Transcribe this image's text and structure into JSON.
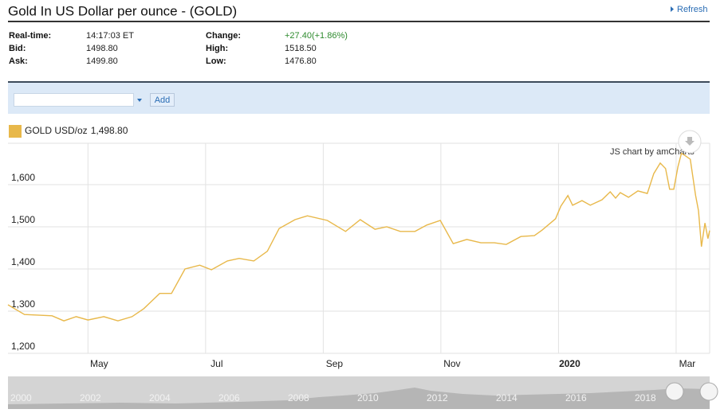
{
  "header": {
    "title": "Gold In US Dollar per ounce - (GOLD)",
    "refresh": "Refresh"
  },
  "quote": {
    "rows": [
      [
        {
          "label": "Real-time:",
          "value": "14:17:03 ET"
        },
        {
          "label": "Change:",
          "value": "+27.40(+1.86%)"
        }
      ],
      [
        {
          "label": "Bid:",
          "value": "1498.80"
        },
        {
          "label": "High:",
          "value": "1518.50"
        }
      ],
      [
        {
          "label": "Ask:",
          "value": "1499.80"
        },
        {
          "label": "Low:",
          "value": "1476.80"
        }
      ]
    ]
  },
  "toolbar": {
    "add": "Add"
  },
  "chart_data": {
    "type": "line",
    "credit": "JS chart by amCharts",
    "legend_value": "1,498.80",
    "x": [
      -0.36,
      -0.08,
      0.39,
      0.59,
      0.8,
      1.0,
      1.27,
      1.51,
      1.75,
      1.95,
      2.22,
      2.42,
      2.65,
      2.9,
      3.1,
      3.37,
      3.57,
      3.82,
      4.05,
      4.25,
      4.52,
      4.73,
      5.07,
      5.38,
      5.63,
      5.88,
      6.08,
      6.31,
      6.56,
      6.76,
      6.99,
      7.21,
      7.44,
      7.68,
      7.91,
      8.11,
      8.36,
      8.59,
      8.72,
      8.95,
      9.04,
      9.16,
      9.24,
      9.4,
      9.54,
      9.74,
      9.88,
      9.97,
      10.05,
      10.19,
      10.35,
      10.51,
      10.62,
      10.73,
      10.82,
      10.89,
      10.96,
      11.03,
      11.09,
      11.16,
      11.24,
      11.33,
      11.38,
      11.43,
      11.49,
      11.54,
      11.57
    ],
    "series": [
      {
        "name": "GOLD USD/oz",
        "color": "#e8b84a",
        "values": [
          1315,
          1292,
          1289,
          1277,
          1287,
          1279,
          1287,
          1277,
          1287,
          1306,
          1342,
          1342,
          1400,
          1409,
          1398,
          1419,
          1425,
          1419,
          1442,
          1496,
          1517,
          1526,
          1515,
          1489,
          1517,
          1494,
          1500,
          1489,
          1489,
          1504,
          1515,
          1460,
          1470,
          1462,
          1462,
          1458,
          1477,
          1479,
          1492,
          1519,
          1549,
          1574,
          1551,
          1562,
          1551,
          1564,
          1583,
          1568,
          1581,
          1570,
          1585,
          1579,
          1626,
          1651,
          1638,
          1589,
          1589,
          1642,
          1674,
          1668,
          1660,
          1575,
          1538,
          1453,
          1509,
          1472,
          1491
        ]
      }
    ],
    "xlim": [
      -0.36,
      11.57
    ],
    "xticks": [
      {
        "value": 1,
        "label": "May"
      },
      {
        "value": 3,
        "label": "Jul"
      },
      {
        "value": 5,
        "label": "Sep"
      },
      {
        "value": 7,
        "label": "Nov"
      },
      {
        "value": 9,
        "label": "2020"
      },
      {
        "value": 11,
        "label": "Mar"
      }
    ],
    "ylim": [
      1200,
      1698
    ],
    "yticks": [
      {
        "value": 1200,
        "label": "1,200"
      },
      {
        "value": 1300,
        "label": "1,300"
      },
      {
        "value": 1400,
        "label": "1,400"
      },
      {
        "value": 1500,
        "label": "1,500"
      },
      {
        "value": 1600,
        "label": "1,600"
      }
    ],
    "grid": true
  },
  "scroller": {
    "labels": [
      "2000",
      "2002",
      "2004",
      "2006",
      "2008",
      "2010",
      "2012",
      "2014",
      "2016",
      "2018"
    ]
  }
}
